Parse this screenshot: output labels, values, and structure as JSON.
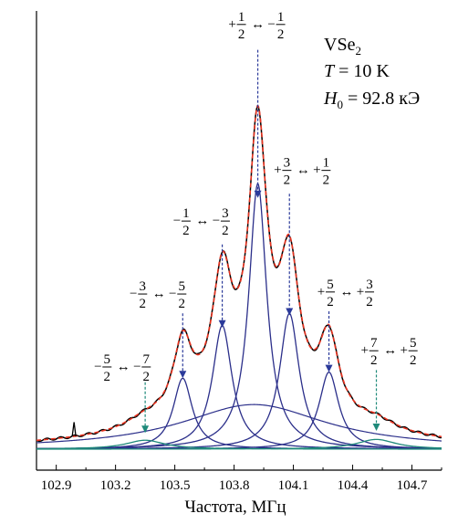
{
  "chart_data": {
    "type": "line",
    "xlabel": "Частота, МГц",
    "ylabel": "",
    "xlim": [
      102.8,
      104.85
    ],
    "ylim": [
      0,
      1.0
    ],
    "x_ticks": [
      102.9,
      103.2,
      103.5,
      103.8,
      104.1,
      104.4,
      104.7
    ],
    "x_tick_labels": [
      "102.9",
      "103.2",
      "103.5",
      "103.8",
      "104.1",
      "104.4",
      "104.7"
    ],
    "sample": {
      "formula_main": "VSe",
      "formula_sub": "2",
      "temperature": {
        "symbol": "T",
        "value": " = 10 K"
      },
      "field": {
        "symbol": "H",
        "sub": "0",
        "value": " = 92.8 кЭ"
      }
    },
    "colors": {
      "experiment": "#000000",
      "fit": "#e8321e",
      "components": "#2b2f8a",
      "broad": "#1f8a7a",
      "arrow_blue": "#2b3a9a",
      "arrow_teal": "#1f8a7a"
    },
    "components": [
      {
        "center": 103.92,
        "amp": 0.655,
        "width": 0.055
      },
      {
        "center": 103.74,
        "amp": 0.305,
        "width": 0.06
      },
      {
        "center": 104.08,
        "amp": 0.335,
        "width": 0.06
      },
      {
        "center": 103.54,
        "amp": 0.175,
        "width": 0.058
      },
      {
        "center": 104.28,
        "amp": 0.19,
        "width": 0.06
      },
      {
        "center": 103.35,
        "amp": 0.022,
        "width": 0.12
      },
      {
        "center": 104.52,
        "amp": 0.024,
        "width": 0.12
      }
    ],
    "broad_background": {
      "center": 103.9,
      "amp": 0.11,
      "width": 0.45
    },
    "experiment_spike": {
      "x": 102.99,
      "amp": 0.035
    },
    "transitions": [
      {
        "id": "t1",
        "x": 103.92,
        "color": "blue",
        "top": 0.985,
        "bottom": 0.62,
        "sign1": "+",
        "num1": "1",
        "sign2": "−",
        "num2": "1",
        "label_x": 103.92,
        "label_y": 1.05
      },
      {
        "id": "t2",
        "x": 103.74,
        "color": "blue",
        "top": 0.505,
        "bottom": 0.3,
        "sign1": "−",
        "num1": "1",
        "sign2": "−",
        "num2": "3",
        "label_x": 103.64,
        "label_y": 0.565
      },
      {
        "id": "t3",
        "x": 104.08,
        "color": "blue",
        "top": 0.63,
        "bottom": 0.33,
        "sign1": "+",
        "num1": "3",
        "sign2": "+",
        "num2": "1",
        "label_x": 104.15,
        "label_y": 0.69
      },
      {
        "id": "t4",
        "x": 103.54,
        "color": "blue",
        "top": 0.335,
        "bottom": 0.175,
        "sign1": "−",
        "num1": "3",
        "sign2": "−",
        "num2": "5",
        "label_x": 103.42,
        "label_y": 0.385
      },
      {
        "id": "t5",
        "x": 104.28,
        "color": "blue",
        "top": 0.34,
        "bottom": 0.19,
        "sign1": "+",
        "num1": "5",
        "sign2": "+",
        "num2": "3",
        "label_x": 104.37,
        "label_y": 0.39
      },
      {
        "id": "t6",
        "x": 103.35,
        "color": "teal",
        "top": 0.165,
        "bottom": 0.04,
        "sign1": "−",
        "num1": "5",
        "sign2": "−",
        "num2": "7",
        "label_x": 103.24,
        "label_y": 0.205
      },
      {
        "id": "t7",
        "x": 104.52,
        "color": "teal",
        "top": 0.195,
        "bottom": 0.045,
        "sign1": "+",
        "num1": "7",
        "sign2": "+",
        "num2": "5",
        "label_x": 104.59,
        "label_y": 0.245
      }
    ]
  }
}
